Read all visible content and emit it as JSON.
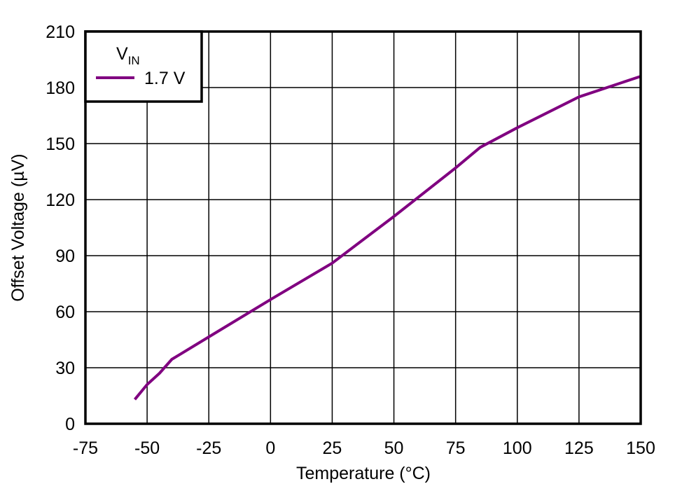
{
  "chart_data": {
    "type": "line",
    "title": "",
    "xlabel": "Temperature (°C)",
    "ylabel": "Offset Voltage (µV)",
    "xlim": [
      -75,
      150
    ],
    "ylim": [
      0,
      210
    ],
    "xticks": [
      -75,
      -50,
      -25,
      0,
      25,
      50,
      75,
      100,
      125,
      150
    ],
    "yticks": [
      0,
      30,
      60,
      90,
      120,
      150,
      180,
      210
    ],
    "grid": true,
    "legend": {
      "title": "V",
      "title_subscript": "IN",
      "position": "upper-left",
      "entries": [
        "1.7 V"
      ]
    },
    "series": [
      {
        "name": "1.7 V",
        "color": "#800080",
        "x": [
          -55,
          -50,
          -45,
          -40,
          -25,
          0,
          25,
          50,
          75,
          85,
          100,
          125,
          150
        ],
        "y": [
          13,
          21,
          27,
          34.5,
          46.5,
          66.5,
          86,
          111,
          137,
          148,
          158.5,
          175,
          186
        ]
      }
    ]
  }
}
